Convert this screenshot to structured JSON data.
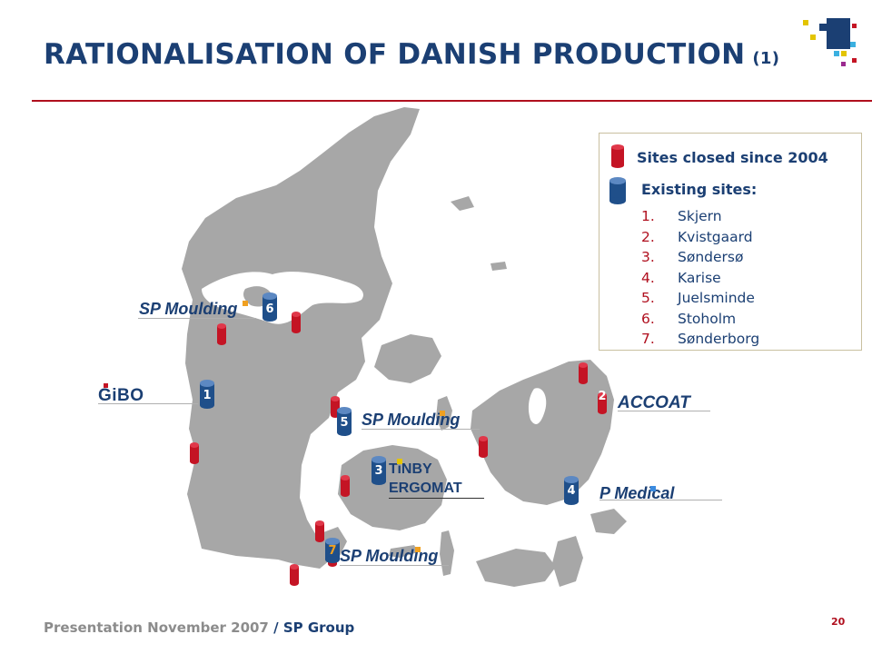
{
  "slide": {
    "title": "RATIONALISATION OF DANISH PRODUCTION",
    "title_suffix": "(1)",
    "footer_main": "Presentation November 2007",
    "footer_sep": " / ",
    "footer_company": "SP Group",
    "page_number": "20"
  },
  "legend": {
    "closed_label": "Sites closed since 2004",
    "existing_label": "Existing sites:",
    "sites": [
      {
        "num": "1.",
        "name": "Skjern"
      },
      {
        "num": "2.",
        "name": "Kvistgaard"
      },
      {
        "num": "3.",
        "name": "Søndersø"
      },
      {
        "num": "4.",
        "name": "Karise"
      },
      {
        "num": "5.",
        "name": "Juelsminde"
      },
      {
        "num": "6.",
        "name": "Stoholm"
      },
      {
        "num": "7.",
        "name": "Sønderborg"
      }
    ]
  },
  "brands": {
    "sp_moulding_6": "SP Moulding",
    "gibo": "GiBO",
    "sp_moulding_5": "SP Moulding",
    "tinby": "TiNBY",
    "ergomat": "ERGOMAT",
    "accoat": "ACCOAT",
    "sp_medical": "P Medical",
    "sp_moulding_7": "SP Moulding"
  },
  "markers": {
    "site_1": "1",
    "site_2": "2",
    "site_3": "3",
    "site_4": "4",
    "site_5": "5",
    "site_6": "6",
    "site_7": "7"
  },
  "colors": {
    "navy": "#1b3f73",
    "red": "#b00f1e",
    "map_gray": "#a7a7a7",
    "existing_blue": "#1f4f8a",
    "closed_red": "#c41424"
  }
}
